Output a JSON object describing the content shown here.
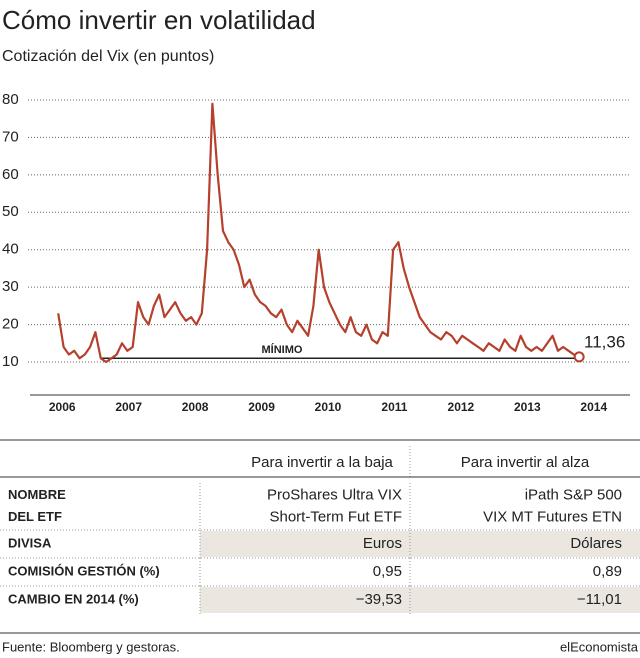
{
  "chart_data": {
    "type": "line",
    "title": "Cómo invertir en volatilidad",
    "subtitle": "Cotización del Vix (en puntos)",
    "x": [
      2005.94,
      2006.02,
      2006.1,
      2006.18,
      2006.26,
      2006.34,
      2006.42,
      2006.5,
      2006.58,
      2006.66,
      2006.74,
      2006.82,
      2006.9,
      2006.98,
      2007.06,
      2007.14,
      2007.22,
      2007.3,
      2007.38,
      2007.46,
      2007.54,
      2007.62,
      2007.7,
      2007.78,
      2007.86,
      2007.94,
      2008.02,
      2008.1,
      2008.18,
      2008.26,
      2008.34,
      2008.42,
      2008.5,
      2008.58,
      2008.66,
      2008.74,
      2008.82,
      2008.9,
      2008.98,
      2009.06,
      2009.14,
      2009.22,
      2009.3,
      2009.38,
      2009.46,
      2009.54,
      2009.62,
      2009.7,
      2009.78,
      2009.86,
      2009.94,
      2010.02,
      2010.1,
      2010.18,
      2010.26,
      2010.34,
      2010.42,
      2010.5,
      2010.58,
      2010.66,
      2010.74,
      2010.82,
      2010.9,
      2010.98,
      2011.06,
      2011.14,
      2011.22,
      2011.3,
      2011.38,
      2011.46,
      2011.54,
      2011.62,
      2011.7,
      2011.78,
      2011.86,
      2011.94,
      2012.02,
      2012.1,
      2012.18,
      2012.26,
      2012.34,
      2012.42,
      2012.5,
      2012.58,
      2012.66,
      2012.74,
      2012.82,
      2012.9,
      2012.98,
      2013.06,
      2013.14,
      2013.22,
      2013.3,
      2013.38,
      2013.46,
      2013.54,
      2013.62,
      2013.7,
      2013.78
    ],
    "series": [
      {
        "name": "Vix",
        "color": "#b5402c",
        "values": [
          23,
          14,
          12,
          13,
          11,
          12,
          14,
          18,
          11,
          10,
          11,
          12,
          15,
          13,
          14,
          26,
          22,
          20,
          25,
          28,
          22,
          24,
          26,
          23,
          21,
          22,
          20,
          23,
          40,
          79,
          60,
          45,
          42,
          40,
          36,
          30,
          32,
          28,
          26,
          25,
          23,
          22,
          24,
          20,
          18,
          21,
          19,
          17,
          25,
          40,
          30,
          26,
          23,
          20,
          18,
          22,
          18,
          17,
          20,
          16,
          15,
          18,
          17,
          40,
          42,
          35,
          30,
          26,
          22,
          20,
          18,
          17,
          16,
          18,
          17,
          15,
          17,
          16,
          15,
          14,
          13,
          15,
          14,
          13,
          16,
          14,
          13,
          17,
          14,
          13,
          14,
          13,
          15,
          17,
          13,
          14,
          13,
          12,
          11.36
        ]
      }
    ],
    "last_label": {
      "value": 11.36,
      "label": "11,36"
    },
    "reference_line": {
      "label": "MÍNIMO",
      "value": 11
    },
    "xlim": [
      2005.5,
      2014.5
    ],
    "xticks": [
      2006,
      2007,
      2008,
      2009,
      2010,
      2011,
      2012,
      2013,
      2014
    ],
    "ylim": [
      1,
      81
    ],
    "yticks": [
      10,
      20,
      30,
      40,
      50,
      60,
      70,
      80
    ],
    "grid": true
  },
  "table": {
    "headers": [
      "Para invertir a la baja",
      "Para invertir al alza"
    ],
    "rows": [
      {
        "label": [
          "NOMBRE",
          "DEL ETF"
        ],
        "cells": [
          [
            "ProShares Ultra VIX",
            "Short-Term Fut ETF"
          ],
          [
            "iPath S&P 500",
            "VIX MT Futures ETN"
          ]
        ]
      },
      {
        "label": [
          "DIVISA"
        ],
        "cells": [
          [
            "Euros"
          ],
          [
            "Dólares"
          ]
        ]
      },
      {
        "label": [
          "COMISIÓN GESTIÓN (%)"
        ],
        "cells": [
          [
            "0,95"
          ],
          [
            "0,89"
          ]
        ]
      },
      {
        "label": [
          "CAMBIO EN 2014  (%)"
        ],
        "cells": [
          [
            "−39,53"
          ],
          [
            "−11,01"
          ]
        ]
      }
    ]
  },
  "footer": {
    "source": "Fuente: Bloomberg y gestoras.",
    "brand": "elEconomista"
  }
}
